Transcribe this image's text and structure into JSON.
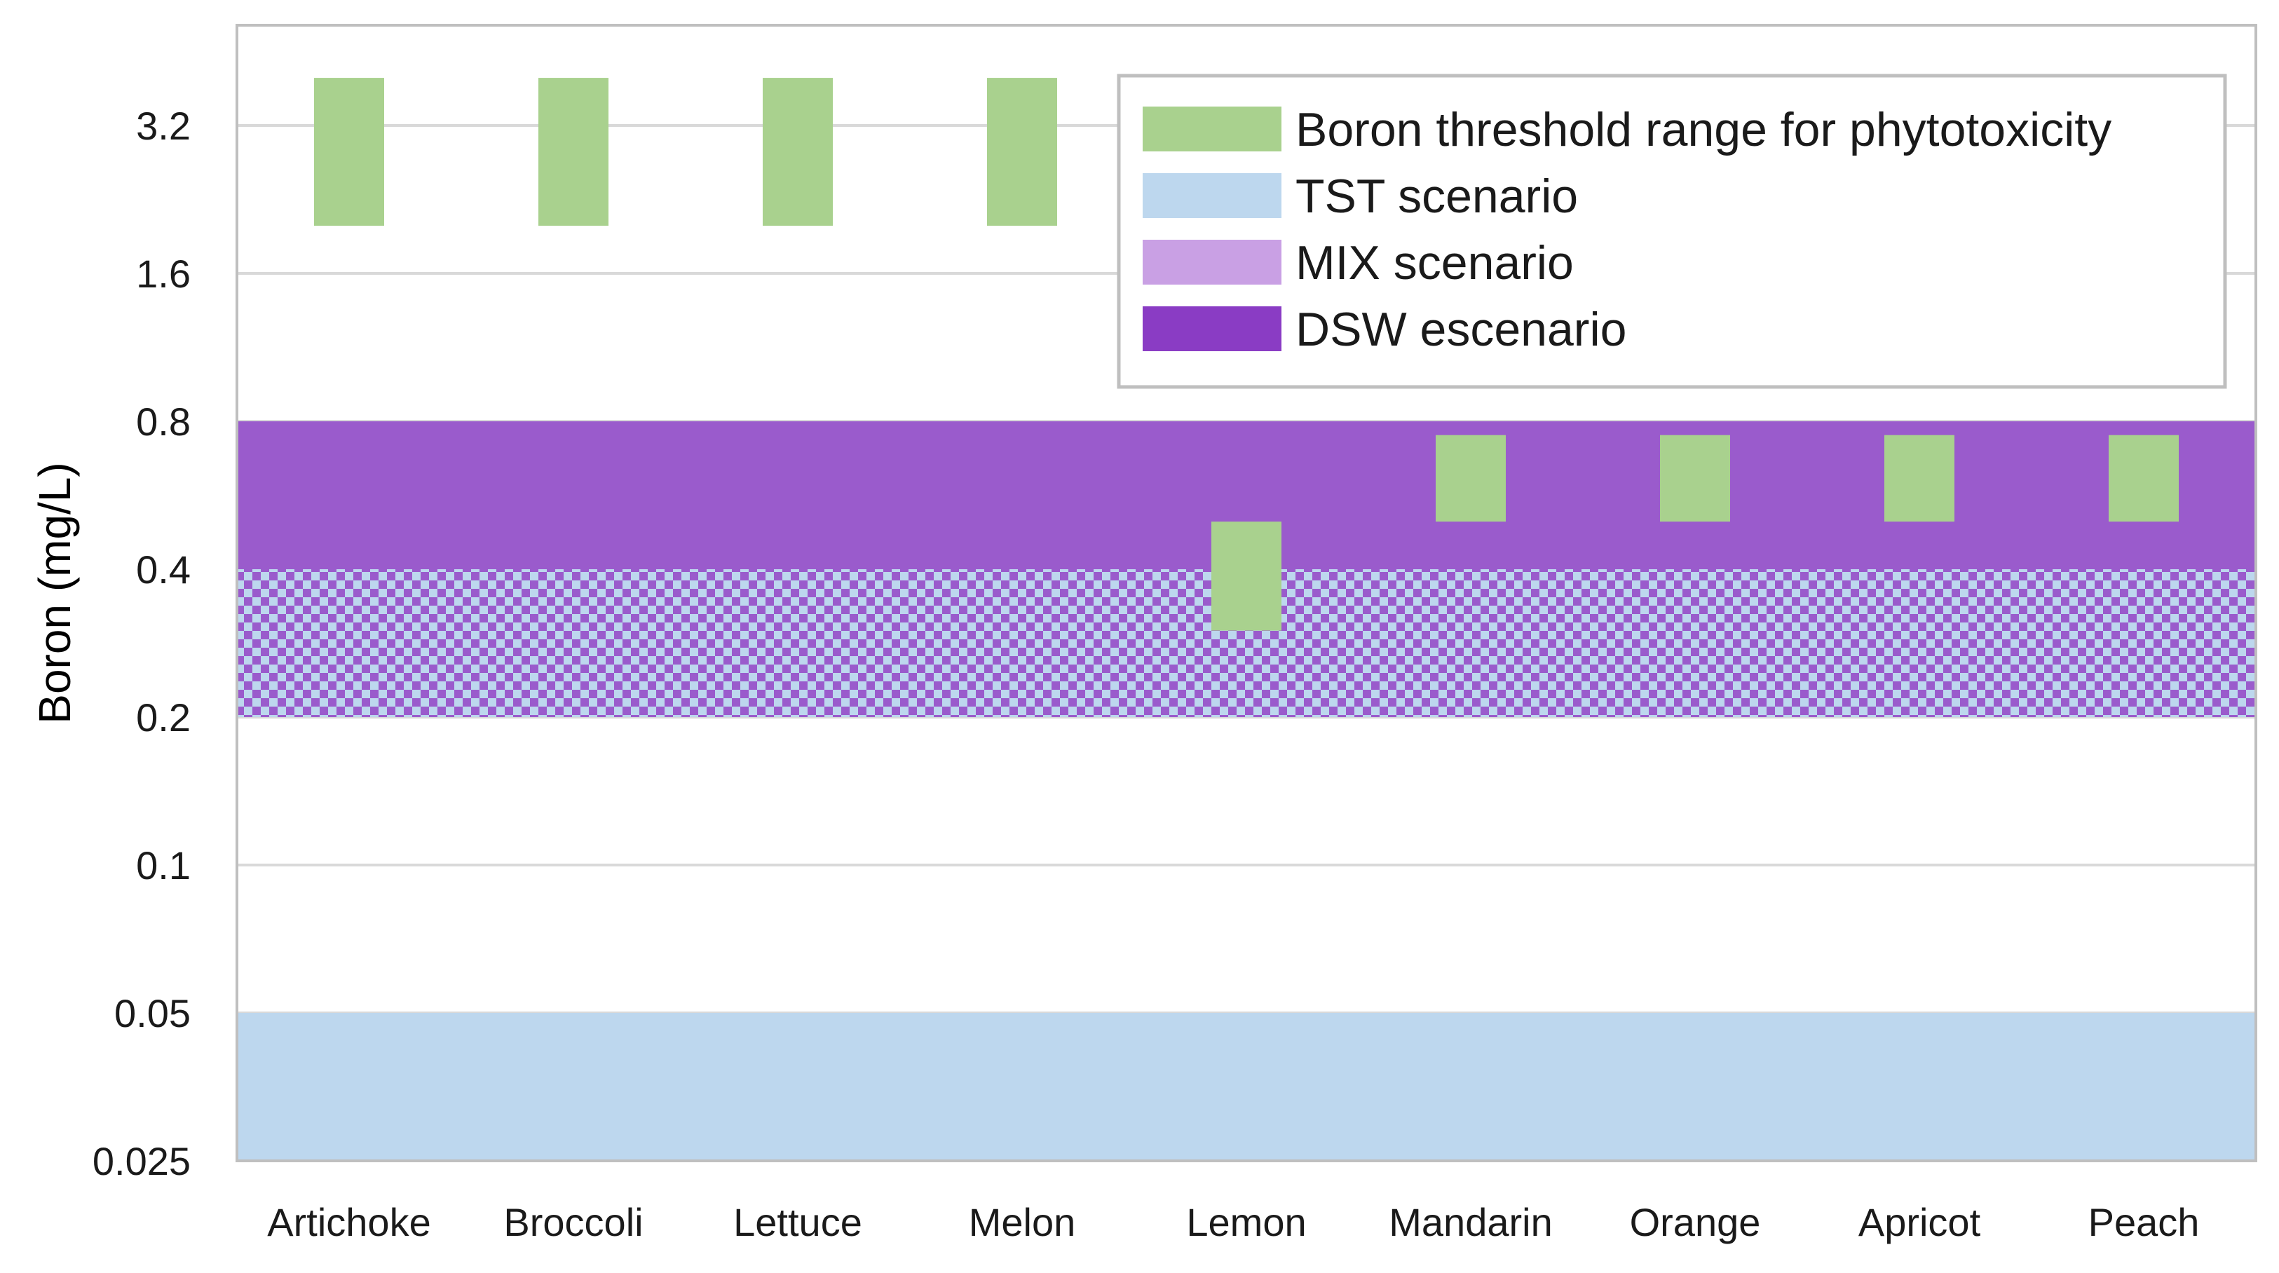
{
  "chart_data": {
    "type": "bar",
    "title": "",
    "xlabel": "",
    "ylabel": "Boron (mg/L)",
    "yscale": "log2",
    "ylim": [
      0.025,
      4.5
    ],
    "yticks": [
      {
        "value": 0.025,
        "label": "0.025"
      },
      {
        "value": 0.05,
        "label": "0.05"
      },
      {
        "value": 0.1,
        "label": "0.1"
      },
      {
        "value": 0.2,
        "label": "0.2"
      },
      {
        "value": 0.4,
        "label": "0.4"
      },
      {
        "value": 0.8,
        "label": "0.8"
      },
      {
        "value": 1.6,
        "label": "1.6"
      },
      {
        "value": 3.2,
        "label": "3.2"
      }
    ],
    "grid": true,
    "categories": [
      "Artichoke",
      "Broccoli",
      "Lettuce",
      "Melon",
      "Lemon",
      "Mandarin",
      "Orange",
      "Apricot",
      "Peach"
    ],
    "scenario_bands": [
      {
        "name": "TST scenario",
        "low": 0.025,
        "high": 0.05,
        "color": "#bdd7ee",
        "pattern": "solid"
      },
      {
        "name": "MIX scenario",
        "low": 0.2,
        "high": 0.4,
        "color": "#c9a0e4",
        "pattern": "checker"
      },
      {
        "name": "DSW escenario",
        "low": 0.4,
        "high": 0.8,
        "color": "#9a5bcc",
        "pattern": "solid"
      }
    ],
    "series": [
      {
        "name": "Boron threshold range for phytotoxicity",
        "color": "#a9d18e",
        "ranges": [
          {
            "category": "Artichoke",
            "low": 2.0,
            "high": 4.0
          },
          {
            "category": "Broccoli",
            "low": 2.0,
            "high": 4.0
          },
          {
            "category": "Lettuce",
            "low": 2.0,
            "high": 4.0
          },
          {
            "category": "Melon",
            "low": 2.0,
            "high": 4.0
          },
          {
            "category": "Lemon",
            "low": 0.3,
            "high": 0.5
          },
          {
            "category": "Mandarin",
            "low": 0.5,
            "high": 0.75
          },
          {
            "category": "Orange",
            "low": 0.5,
            "high": 0.75
          },
          {
            "category": "Apricot",
            "low": 0.5,
            "high": 0.75
          },
          {
            "category": "Peach",
            "low": 0.5,
            "high": 0.75
          }
        ]
      }
    ],
    "legend": {
      "position": "top-right",
      "entries": [
        {
          "label": "Boron threshold range for phytotoxicity",
          "color": "#a9d18e"
        },
        {
          "label": "TST scenario",
          "color": "#bdd7ee"
        },
        {
          "label": "MIX scenario",
          "color": "#c9a0e4"
        },
        {
          "label": "DSW escenario",
          "color": "#8a3cc4"
        }
      ]
    }
  }
}
